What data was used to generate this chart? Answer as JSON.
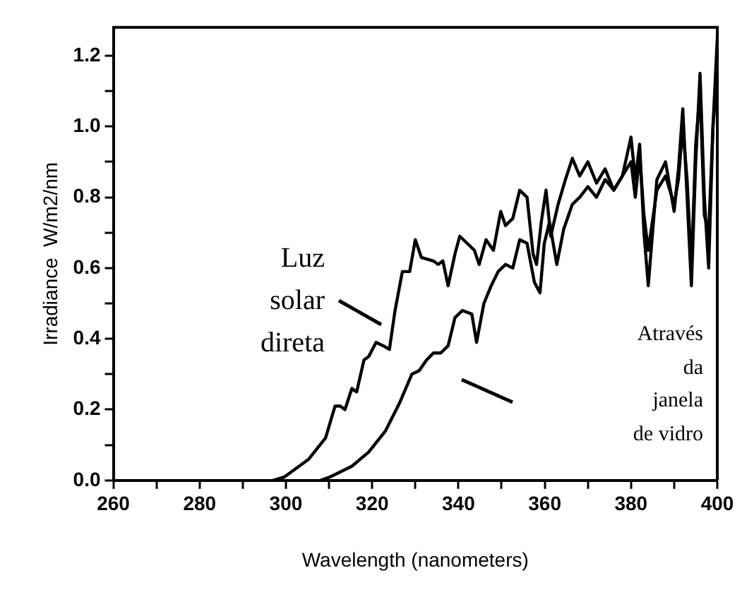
{
  "chart_data": {
    "type": "line",
    "xlabel": "Wavelength (nanometers)",
    "ylabel": "Irradiance  W/m2/nm",
    "xlim": [
      260,
      400
    ],
    "ylim": [
      0,
      1.28
    ],
    "xticks": [
      260,
      {
        "value": 270,
        "label": null
      },
      280,
      {
        "value": 290,
        "label": null
      },
      300,
      {
        "value": 310,
        "label": null
      },
      320,
      {
        "value": 330,
        "label": null
      },
      340,
      {
        "value": 350,
        "label": null
      },
      360,
      {
        "value": 370,
        "label": null
      },
      380,
      {
        "value": 390,
        "label": null
      },
      400
    ],
    "yticks": [
      {
        "value": 0,
        "label": "0.0"
      },
      {
        "value": 0.1,
        "label": null
      },
      0.2,
      {
        "value": 0.3,
        "label": null
      },
      0.4,
      {
        "value": 0.5,
        "label": null
      },
      0.6,
      {
        "value": 0.7,
        "label": null
      },
      0.8,
      {
        "value": 0.9,
        "label": null
      },
      {
        "value": 1,
        "label": "1.0"
      },
      {
        "value": 1.1,
        "label": null
      },
      1.2
    ],
    "marker": "none",
    "line_style": "solid",
    "series": [
      {
        "color": "#000000",
        "x": [
          297,
          299.7,
          305.3,
          309.2,
          311.4,
          312.6,
          313.7,
          315.3,
          316.4,
          318.1,
          319.2,
          320.9,
          322.6,
          324,
          325.3,
          327,
          328.7,
          330,
          331.4,
          334.2,
          335.3,
          336.4,
          337.6,
          339.2,
          340.3,
          342,
          343.7,
          344.8,
          346.4,
          348.1,
          349.8,
          350.9,
          352.6,
          354.2,
          355.9,
          357.3,
          358.1,
          359.2,
          360.3,
          361.4,
          363.1,
          364.8,
          366.4,
          368.1,
          370,
          372,
          374,
          376,
          378,
          380,
          381,
          382,
          383,
          384,
          386,
          388,
          390,
          391,
          392,
          393,
          394,
          395,
          396,
          397,
          398,
          399,
          400
        ],
        "values": [
          0,
          0.01,
          0.06,
          0.12,
          0.21,
          0.21,
          0.2,
          0.26,
          0.25,
          0.34,
          0.35,
          0.39,
          0.38,
          0.37,
          0.48,
          0.59,
          0.59,
          0.68,
          0.63,
          0.62,
          0.61,
          0.62,
          0.55,
          0.64,
          0.69,
          0.67,
          0.65,
          0.61,
          0.68,
          0.65,
          0.76,
          0.72,
          0.74,
          0.82,
          0.8,
          0.64,
          0.61,
          0.73,
          0.82,
          0.69,
          0.78,
          0.85,
          0.91,
          0.86,
          0.9,
          0.84,
          0.88,
          0.82,
          0.86,
          0.97,
          0.85,
          0.95,
          0.7,
          0.55,
          0.85,
          0.9,
          0.76,
          0.88,
          1.05,
          0.8,
          0.55,
          0.9,
          1.15,
          0.8,
          0.6,
          1.0,
          1.25
        ]
      },
      {
        "color": "#000000",
        "x": [
          308,
          310.3,
          315.3,
          319.2,
          323.1,
          326.4,
          329.2,
          330.9,
          332.6,
          334.2,
          335.9,
          337.6,
          339.2,
          340.9,
          343.1,
          344.2,
          345.9,
          347.6,
          349.2,
          350.9,
          352.6,
          354.2,
          355.9,
          357.6,
          358.9,
          359.9,
          361.1,
          362.8,
          364.4,
          366.4,
          368.1,
          370,
          372,
          374,
          376,
          378,
          380,
          381,
          382,
          383,
          384,
          386,
          388,
          390,
          391,
          392,
          393,
          394,
          395,
          396,
          397,
          398,
          399,
          400
        ],
        "values": [
          0,
          0.01,
          0.04,
          0.08,
          0.14,
          0.22,
          0.3,
          0.31,
          0.34,
          0.36,
          0.36,
          0.38,
          0.46,
          0.48,
          0.47,
          0.39,
          0.5,
          0.55,
          0.59,
          0.61,
          0.6,
          0.68,
          0.67,
          0.56,
          0.53,
          0.67,
          0.73,
          0.61,
          0.71,
          0.78,
          0.8,
          0.83,
          0.8,
          0.85,
          0.82,
          0.86,
          0.9,
          0.8,
          0.92,
          0.75,
          0.65,
          0.82,
          0.86,
          0.78,
          0.85,
          1.0,
          0.85,
          0.6,
          0.95,
          1.1,
          0.75,
          0.7,
          1.0,
          1.15
        ]
      }
    ],
    "annotations": [
      "Luz\nsolar\ndireta",
      "Através\nda\njanela\nde vidro"
    ]
  }
}
